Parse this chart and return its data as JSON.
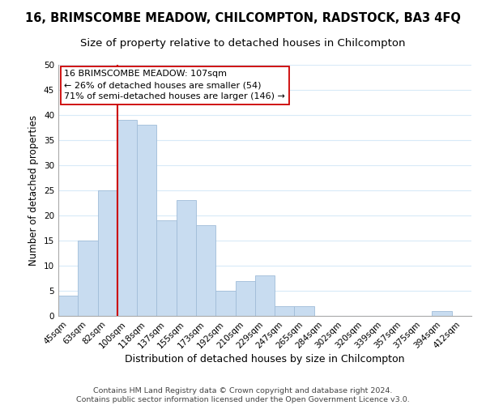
{
  "title": "16, BRIMSCOMBE MEADOW, CHILCOMPTON, RADSTOCK, BA3 4FQ",
  "subtitle": "Size of property relative to detached houses in Chilcompton",
  "xlabel": "Distribution of detached houses by size in Chilcompton",
  "ylabel": "Number of detached properties",
  "bar_color": "#c8dcf0",
  "bar_edge_color": "#a0bcd8",
  "bin_labels": [
    "45sqm",
    "63sqm",
    "82sqm",
    "100sqm",
    "118sqm",
    "137sqm",
    "155sqm",
    "173sqm",
    "192sqm",
    "210sqm",
    "229sqm",
    "247sqm",
    "265sqm",
    "284sqm",
    "302sqm",
    "320sqm",
    "339sqm",
    "357sqm",
    "375sqm",
    "394sqm",
    "412sqm"
  ],
  "bar_heights": [
    4,
    15,
    25,
    39,
    38,
    19,
    23,
    18,
    5,
    7,
    8,
    2,
    2,
    0,
    0,
    0,
    0,
    0,
    0,
    1,
    0
  ],
  "ylim": [
    0,
    50
  ],
  "yticks": [
    0,
    5,
    10,
    15,
    20,
    25,
    30,
    35,
    40,
    45,
    50
  ],
  "vline_x_bin": 3,
  "vline_color": "#cc0000",
  "annotation_lines": [
    "16 BRIMSCOMBE MEADOW: 107sqm",
    "← 26% of detached houses are smaller (54)",
    "71% of semi-detached houses are larger (146) →"
  ],
  "annotation_box_color": "white",
  "annotation_box_edge_color": "#cc0000",
  "grid_color": "#d8eaf8",
  "background_color": "white",
  "footer_lines": [
    "Contains HM Land Registry data © Crown copyright and database right 2024.",
    "Contains public sector information licensed under the Open Government Licence v3.0."
  ],
  "title_fontsize": 10.5,
  "subtitle_fontsize": 9.5,
  "xlabel_fontsize": 9,
  "ylabel_fontsize": 8.5,
  "tick_fontsize": 7.5,
  "annotation_fontsize": 8,
  "footer_fontsize": 6.8
}
